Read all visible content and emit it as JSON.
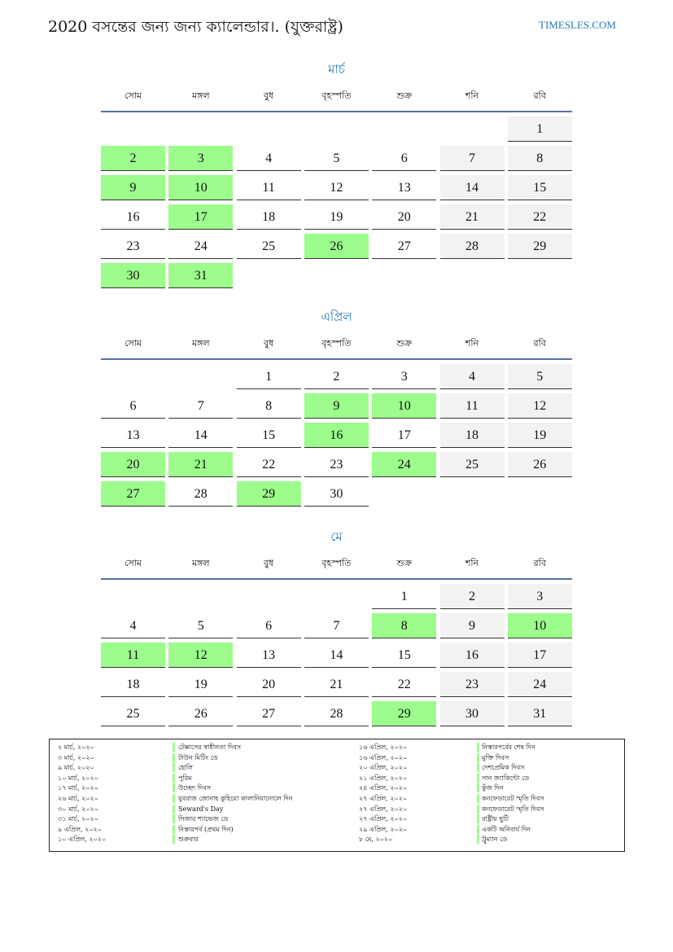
{
  "header": {
    "title": "2020 বসন্তের জন্য জন্য ক্যালেন্ডার।. (যুক্তরাষ্ট্র)",
    "site": "TIMESLES.COM"
  },
  "weekdays": [
    "সোম",
    "মঙ্গল",
    "বুধ",
    "বৃহস্পতি",
    "শুক্র",
    "শনি",
    "রবি"
  ],
  "colors": {
    "holiday": "#9cfc8c",
    "weekend": "#f2f2f2",
    "accent": "#2a7ab8",
    "rule": "#5572a0"
  },
  "months": [
    {
      "name": "মার্চ",
      "first_weekday_index": 6,
      "days": 31,
      "holidays": [
        2,
        3,
        9,
        10,
        17,
        26,
        30,
        31
      ]
    },
    {
      "name": "এপ্রিল",
      "first_weekday_index": 2,
      "days": 30,
      "holidays": [
        9,
        10,
        16,
        20,
        21,
        24,
        27,
        29
      ]
    },
    {
      "name": "মে",
      "first_weekday_index": 4,
      "days": 31,
      "holidays": [
        8,
        10,
        11,
        12,
        29
      ]
    }
  ],
  "holiday_list": [
    {
      "date": "২ মার্চ, ২০২০",
      "name": "টেক্সাসের স্বাধীনতা দিবস"
    },
    {
      "date": "৩ মার্চ, ২০২০",
      "name": "টাউন মিটিং ডে"
    },
    {
      "date": "৯ মার্চ, ২০২০",
      "name": "হোলি"
    },
    {
      "date": "১০ মার্চ, ২০২০",
      "name": "পুরিম"
    },
    {
      "date": "১৭ মার্চ, ২০২০",
      "name": "উচ্ছেদ দিবস"
    },
    {
      "date": "২৬ মার্চ, ২০২০",
      "name": "যুবরাজ জোনাহ কুহিয়ো কালানিয়ানোলে দিন"
    },
    {
      "date": "৩০ মার্চ, ২০২০",
      "name": "Seward's Day"
    },
    {
      "date": "৩১ মার্চ, ২০২০",
      "name": "সিজার শ্যাভেজ ডে"
    },
    {
      "date": "৯ এপ্রিল, ২০২০",
      "name": "নিস্তারপর্ব (প্রথম দিন)"
    },
    {
      "date": "১০ এপ্রিল, ২০২০",
      "name": "শুক্রবার"
    },
    {
      "date": "১৬ এপ্রিল, ২০২০",
      "name": "নিস্তারপর্বের শেষ দিন"
    },
    {
      "date": "১৬ এপ্রিল, ২০২০",
      "name": "মুক্তি দিবস"
    },
    {
      "date": "২০ এপ্রিল, ২০২০",
      "name": "দেশপ্রেমিক দিবস"
    },
    {
      "date": "২১ এপ্রিল, ২০২০",
      "name": "সান জ্যাকিন্টো ডে"
    },
    {
      "date": "২৪ এপ্রিল, ২০২০",
      "name": "কুঁজ দিন"
    },
    {
      "date": "২৭ এপ্রিল, ২০২০",
      "name": "কনফেডারেট স্মৃতি দিবস"
    },
    {
      "date": "২৭ এপ্রিল, ২০২০",
      "name": "কনফেডারেট স্মৃতি দিবস"
    },
    {
      "date": "২৭ এপ্রিল, ২০২০",
      "name": "রাষ্ট্রীয় ছুটি"
    },
    {
      "date": "২৯ এপ্রিল, ২০২০",
      "name": "একটি অনিবার্য দিন"
    },
    {
      "date": "৮ মে, ২০২০",
      "name": "ট্রুম্যান ডে"
    }
  ]
}
